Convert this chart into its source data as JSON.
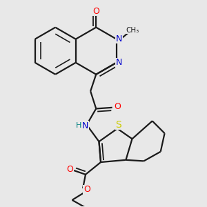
{
  "bg_color": "#e8e8e8",
  "bond_color": "#1a1a1a",
  "atom_colors": {
    "O": "#ff0000",
    "N": "#0000cc",
    "S": "#cccc00",
    "H": "#008080",
    "C": "#1a1a1a"
  },
  "figsize": [
    3.0,
    3.0
  ],
  "dpi": 100,
  "lw": 1.6,
  "lw_double": 1.3
}
